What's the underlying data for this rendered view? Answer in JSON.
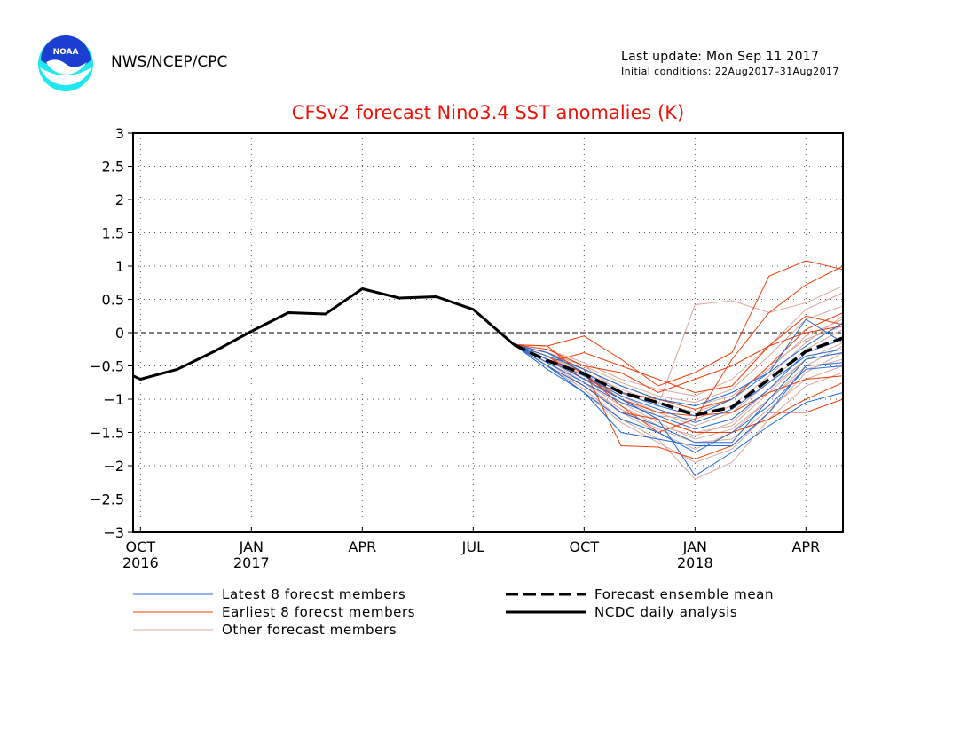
{
  "header": {
    "org": "NWS/NCEP/CPC",
    "last_update": "Last update: Mon Sep 11 2017",
    "initial_conditions": "Initial conditions: 22Aug2017–31Aug2017",
    "logo_text": "NOAA"
  },
  "colors": {
    "latest": "#1f6ad8",
    "earliest": "#e8400a",
    "other": "#d8a8a0",
    "title": "#e8140a"
  },
  "chart_data": {
    "type": "line",
    "title": "CFSv2 forecast Nino3.4 SST anomalies (K)",
    "ylim": [
      -3,
      3
    ],
    "yticks": [
      -3,
      -2.5,
      -2,
      -1.5,
      -1,
      -0.5,
      0,
      0.5,
      1,
      1.5,
      2,
      2.5,
      3
    ],
    "ytick_labels": [
      "−3",
      "−2.5",
      "−2",
      "−1.5",
      "−1",
      "−0.5",
      "0",
      "0.5",
      "1",
      "1.5",
      "2",
      "2.5",
      "3"
    ],
    "x_range_months": [
      8.5,
      19.5
    ],
    "xticks": [
      {
        "month": 9,
        "label": "OCT",
        "year": "2016"
      },
      {
        "month": 12,
        "label": "JAN",
        "year": "2017"
      },
      {
        "month": 15,
        "label": "APR",
        "year": ""
      },
      {
        "month": 18,
        "label": "JUL",
        "year": ""
      },
      {
        "month": 21,
        "label": "OCT",
        "year": ""
      },
      {
        "month": 24,
        "label": "JAN",
        "year": "2018"
      },
      {
        "month": 27,
        "label": "APR",
        "year": ""
      }
    ],
    "x_month_offset_note": "",
    "grid": true,
    "zero_line": true,
    "analysis": {
      "name": "NCDC daily analysis",
      "x": [
        8.0,
        9.0,
        10.0,
        11.0,
        12.0,
        13.0,
        14.0,
        15.0,
        16.0,
        17.0,
        18.0,
        19.1
      ],
      "y": [
        -0.45,
        -0.7,
        -0.55,
        -0.28,
        0.02,
        0.3,
        0.28,
        0.66,
        0.52,
        0.54,
        0.35,
        -0.18
      ]
    },
    "ensemble_mean": {
      "name": "Forecast ensemble mean",
      "x": [
        19.1,
        20.0,
        21.0,
        22.0,
        23.0,
        24.0,
        25.0,
        26.0,
        27.0,
        28.0
      ],
      "y": [
        -0.18,
        -0.42,
        -0.62,
        -0.9,
        -1.05,
        -1.24,
        -1.12,
        -0.7,
        -0.28,
        -0.08
      ]
    },
    "member_x": [
      19.1,
      20.0,
      21.0,
      22.0,
      23.0,
      24.0,
      25.0,
      26.0,
      27.0,
      28.0
    ],
    "latest_members": {
      "name": "Latest 8 forecst members",
      "series": [
        [
          -0.18,
          -0.55,
          -0.9,
          -1.5,
          -1.6,
          -1.7,
          -1.7,
          -1.2,
          -0.5,
          -0.45
        ],
        [
          -0.18,
          -0.4,
          -0.7,
          -1.0,
          -1.3,
          -2.15,
          -1.8,
          -1.4,
          -1.05,
          -0.9
        ],
        [
          -0.18,
          -0.5,
          -0.8,
          -1.2,
          -1.4,
          -1.65,
          -1.65,
          -1.0,
          -0.4,
          -0.3
        ],
        [
          -0.18,
          -0.3,
          -0.6,
          -0.9,
          -1.1,
          -1.25,
          -1.0,
          -0.6,
          -0.2,
          0.15
        ],
        [
          -0.18,
          -0.45,
          -0.75,
          -1.05,
          -1.25,
          -1.45,
          -1.3,
          -0.85,
          -0.3,
          -0.1
        ],
        [
          -0.18,
          -0.35,
          -0.55,
          -0.8,
          -1.0,
          -1.1,
          -0.9,
          -0.6,
          0.2,
          -0.15
        ],
        [
          -0.18,
          -0.5,
          -0.9,
          -1.3,
          -1.5,
          -1.8,
          -1.5,
          -1.1,
          -0.55,
          -0.5
        ],
        [
          -0.18,
          -0.4,
          -0.65,
          -0.95,
          -1.15,
          -1.35,
          -1.15,
          -0.75,
          -0.35,
          -0.25
        ]
      ]
    },
    "earliest_members": {
      "name": "Earliest 8 forecst members",
      "series": [
        [
          -0.18,
          -0.2,
          -0.05,
          -0.4,
          -0.8,
          -0.6,
          -0.3,
          0.85,
          1.08,
          0.95
        ],
        [
          -0.18,
          -0.3,
          -0.55,
          -1.7,
          -1.72,
          -1.9,
          -1.7,
          -1.2,
          -1.2,
          -1.0
        ],
        [
          -0.18,
          -0.4,
          -0.6,
          -1.1,
          -1.5,
          -1.3,
          -0.4,
          0.3,
          0.72,
          1.0
        ],
        [
          -0.18,
          -0.25,
          -0.5,
          -0.6,
          -0.9,
          -0.7,
          -0.5,
          -0.2,
          0.0,
          0.1
        ],
        [
          -0.18,
          -0.5,
          -0.8,
          -1.2,
          -1.3,
          -1.5,
          -1.5,
          -1.3,
          -1.0,
          -0.75
        ],
        [
          -0.18,
          -0.35,
          -0.7,
          -0.9,
          -1.0,
          -1.15,
          -1.0,
          -0.5,
          0.05,
          0.3
        ],
        [
          -0.18,
          -0.45,
          -0.3,
          -0.5,
          -0.7,
          -0.9,
          -0.8,
          -0.2,
          0.25,
          0.12
        ],
        [
          -0.18,
          -0.2,
          -0.65,
          -1.0,
          -1.2,
          -1.25,
          -1.2,
          -0.9,
          -0.7,
          -0.65
        ]
      ]
    },
    "other_members": {
      "name": "Other forecast members",
      "series": [
        [
          -0.18,
          -0.3,
          -0.5,
          -0.9,
          -1.1,
          0.42,
          0.48,
          0.3,
          0.45,
          0.7
        ],
        [
          -0.18,
          -0.4,
          -0.7,
          -1.0,
          -1.3,
          -1.5,
          -1.4,
          -0.9,
          -0.4,
          -0.3
        ],
        [
          -0.18,
          -0.45,
          -0.75,
          -1.2,
          -1.5,
          -1.75,
          -1.5,
          -1.0,
          -0.55,
          -0.4
        ],
        [
          -0.18,
          -0.35,
          -0.6,
          -0.85,
          -1.05,
          -1.2,
          -1.0,
          -0.5,
          -0.1,
          0.1
        ],
        [
          -0.18,
          -0.5,
          -0.85,
          -1.3,
          -1.6,
          -2.2,
          -1.95,
          -1.3,
          -0.8,
          -0.6
        ],
        [
          -0.18,
          -0.3,
          -0.5,
          -0.75,
          -0.95,
          -1.05,
          -0.85,
          -0.35,
          0.2,
          0.4
        ],
        [
          -0.18,
          -0.4,
          -0.7,
          -1.05,
          -1.35,
          -1.6,
          -1.45,
          -1.0,
          -0.5,
          -0.2
        ],
        [
          -0.18,
          -0.35,
          -0.65,
          -0.95,
          -1.2,
          -1.4,
          -1.2,
          -0.75,
          -0.25,
          0.05
        ],
        [
          -0.18,
          -0.45,
          -0.8,
          -1.15,
          -1.45,
          -1.65,
          -1.6,
          -1.15,
          -0.7,
          -0.5
        ],
        [
          -0.18,
          -0.3,
          -0.55,
          -0.8,
          -1.0,
          -1.1,
          -0.95,
          -0.55,
          -0.05,
          0.2
        ],
        [
          -0.18,
          -0.5,
          -0.9,
          -1.35,
          -1.65,
          -1.95,
          -1.75,
          -1.2,
          -0.6,
          -0.3
        ],
        [
          -0.18,
          -0.25,
          -0.45,
          -0.7,
          -0.85,
          -0.95,
          -0.7,
          -0.2,
          0.35,
          0.6
        ],
        [
          -0.18,
          -0.4,
          -0.75,
          -1.1,
          -1.4,
          -1.55,
          -1.35,
          -0.85,
          -0.4,
          -0.15
        ],
        [
          -0.18,
          -0.35,
          -0.6,
          -1.0,
          -1.25,
          -1.3,
          -1.1,
          -0.65,
          -0.15,
          0.25
        ]
      ]
    },
    "legend": [
      {
        "label": "Latest 8 forecst members",
        "style": "latest"
      },
      {
        "label": "Earliest 8 forecst members",
        "style": "earliest"
      },
      {
        "label": "Other forecast members",
        "style": "other"
      },
      {
        "label": "Forecast ensemble mean",
        "style": "mean"
      },
      {
        "label": "NCDC daily analysis",
        "style": "analysis"
      }
    ]
  }
}
